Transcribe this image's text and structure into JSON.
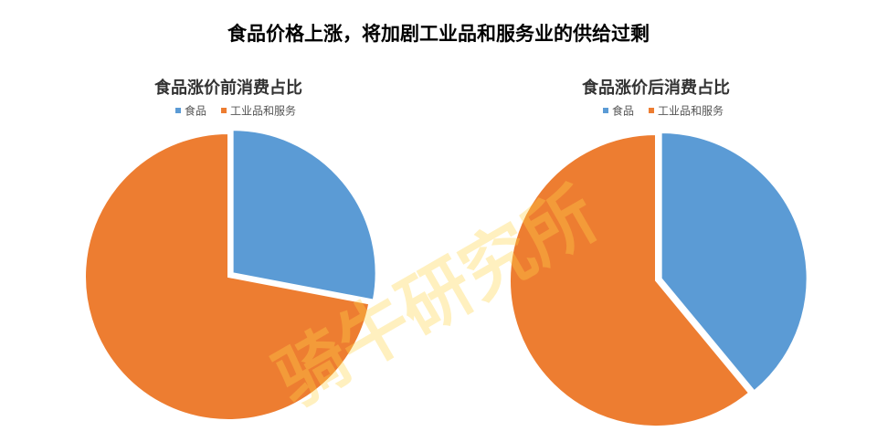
{
  "title": "食品价格上涨，将加剧工业品和服务业的供给过剩",
  "watermark": "骑牛研究所",
  "chart_data": [
    {
      "type": "pie",
      "title": "食品涨价前消费占比",
      "categories": [
        "食品",
        "工业品和服务"
      ],
      "values": [
        28,
        72
      ],
      "colors": [
        "#5b9bd5",
        "#ed7d31"
      ],
      "legend": "top"
    },
    {
      "type": "pie",
      "title": "食品涨价后消费占比",
      "categories": [
        "食品",
        "工业品和服务"
      ],
      "values": [
        39,
        61
      ],
      "colors": [
        "#5b9bd5",
        "#ed7d31"
      ],
      "legend": "top"
    }
  ]
}
